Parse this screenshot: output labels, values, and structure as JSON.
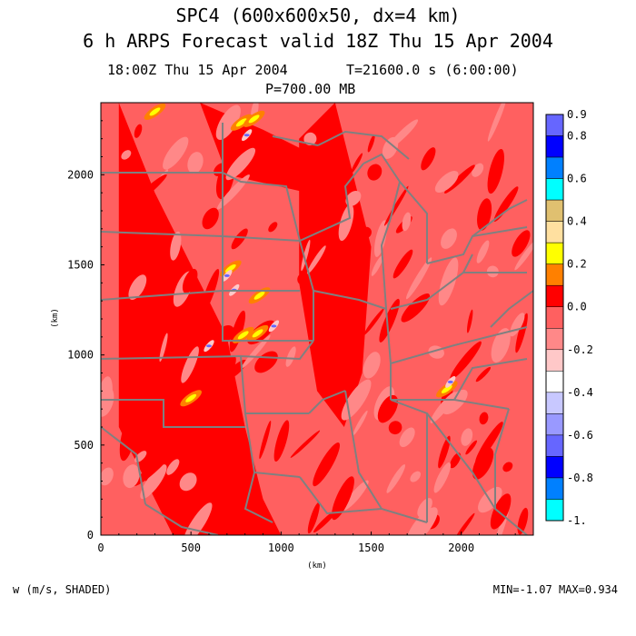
{
  "header": {
    "title_line1": "SPC4 (600x600x50, dx=4 km)",
    "title_line2": "6 h ARPS Forecast valid 18Z Thu 15 Apr 2004",
    "subtitle_time": "18:00Z Thu 15 Apr 2004",
    "subtitle_elapsed": "T=21600.0 s (6:00:00)",
    "subtitle_level": "P=700.00 MB"
  },
  "footer": {
    "variable": "w (m/s, SHADED)",
    "minmax": "MIN=-1.07 MAX=0.934"
  },
  "chart_data": {
    "type": "heatmap",
    "xlabel": "(km)",
    "ylabel": "(km)",
    "xlim": [
      0,
      2400
    ],
    "ylim": [
      0,
      2400
    ],
    "xticks": [
      0,
      500,
      1000,
      1500,
      2000
    ],
    "yticks": [
      0,
      500,
      1000,
      1500,
      2000
    ],
    "colorbar": {
      "labels": [
        "0.9",
        "0.8",
        "0.6",
        "0.4",
        "0.2",
        "0.0",
        "-0.2",
        "-0.4",
        "-0.6",
        "-0.8",
        "-1."
      ],
      "label_values": [
        0.9,
        0.8,
        0.6,
        0.4,
        0.2,
        0.0,
        -0.2,
        -0.4,
        -0.6,
        -0.8,
        -1.0
      ],
      "levels_top_to_bottom": [
        0.9,
        0.8,
        0.7,
        0.6,
        0.5,
        0.4,
        0.3,
        0.2,
        0.1,
        0.0,
        -0.1,
        -0.2,
        -0.3,
        -0.4,
        -0.5,
        -0.6,
        -0.7,
        -0.8,
        -0.9,
        -1.0
      ],
      "colors_top_to_bottom": [
        "#6666ff",
        "#0000ff",
        "#0080ff",
        "#00ffff",
        "#e0c070",
        "#ffe0a0",
        "#ffff00",
        "#ff8000",
        "#ff0000",
        "#ff6060",
        "#ff8888",
        "#ffc8c8",
        "#ffffff",
        "#c8c8ff",
        "#9999ff",
        "#6666ff",
        "#0000ff",
        "#0080ff",
        "#00ffff"
      ]
    },
    "field": {
      "base_color": "#ff6060",
      "updraft_color": "#ff0000",
      "weak_positive_color": "#ff8000",
      "moderate_positive_color": "#ffff00",
      "downdraft_color": "#ff8888",
      "strong_downdraft_color": "#ffc8c8",
      "map_line_color": "#808080"
    },
    "features": [
      {
        "kind": "updraft-band",
        "points": [
          [
            100,
            2400
          ],
          [
            300,
            1900
          ],
          [
            500,
            1500
          ],
          [
            700,
            1100
          ],
          [
            800,
            600
          ],
          [
            900,
            200
          ],
          [
            1000,
            0
          ],
          [
            400,
            0
          ],
          [
            100,
            600
          ]
        ]
      },
      {
        "kind": "updraft-band",
        "points": [
          [
            1300,
            2400
          ],
          [
            1500,
            1600
          ],
          [
            1450,
            900
          ],
          [
            1350,
            600
          ],
          [
            1200,
            800
          ],
          [
            1100,
            1400
          ],
          [
            1100,
            2200
          ]
        ]
      },
      {
        "kind": "updraft-band",
        "points": [
          [
            550,
            2400
          ],
          [
            900,
            2250
          ],
          [
            1200,
            2100
          ],
          [
            1150,
            1900
          ],
          [
            700,
            2000
          ]
        ]
      },
      {
        "kind": "positive-cells",
        "points": [
          [
            780,
            2290
          ],
          [
            850,
            2310
          ],
          [
            720,
            1480
          ],
          [
            880,
            1330
          ],
          [
            790,
            1110
          ],
          [
            870,
            1120
          ],
          [
            1920,
            810
          ],
          [
            500,
            760
          ],
          [
            300,
            2350
          ]
        ]
      },
      {
        "kind": "negative-cells",
        "points": [
          [
            810,
            2220
          ],
          [
            700,
            1440
          ],
          [
            740,
            1360
          ],
          [
            960,
            1160
          ],
          [
            600,
            1050
          ],
          [
            1940,
            850
          ]
        ]
      }
    ]
  }
}
